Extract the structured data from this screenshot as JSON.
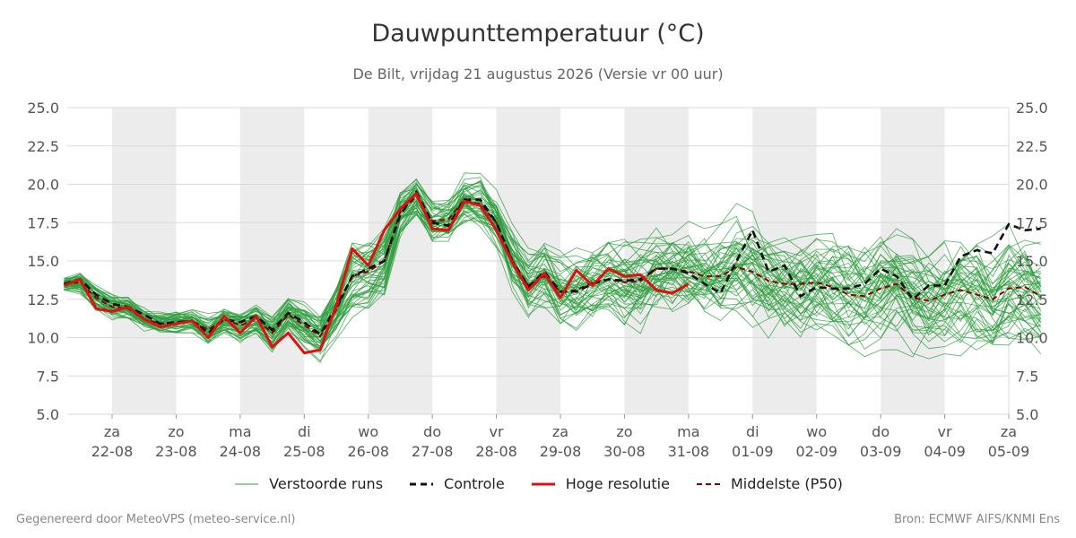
{
  "header": {
    "title": "Dauwpunttemperatuur (°C)",
    "subtitle": "De Bilt, vrijdag 21 augustus 2026 (Versie vr 00 uur)"
  },
  "footer": {
    "left": "Gegenereerd door MeteoVPS (meteo-service.nl)",
    "right": "Bron: ECMWF AIFS/KNMI Ens"
  },
  "legend": {
    "ens_label": "Verstoorde runs",
    "control_label": "Controle",
    "hires_label": "Hoge resolutie",
    "median_label": "Middelste (P50)"
  },
  "colors": {
    "ensemble": "#2e9e3e",
    "control": "#111111",
    "hires": "#dd1111",
    "median": "#8b0000",
    "weekend_band": "#ececec",
    "grid": "#d9d9d9"
  },
  "chart_data": {
    "type": "line",
    "ylim": [
      5,
      25
    ],
    "yticks": [
      "5.0",
      "7.5",
      "10.0",
      "12.5",
      "15.0",
      "17.5",
      "20.0",
      "22.5",
      "25.0"
    ],
    "xlim": [
      -0.7,
      14.0
    ],
    "xticks": [
      {
        "x": 0,
        "day": "za",
        "date": "22-08"
      },
      {
        "x": 1,
        "day": "zo",
        "date": "23-08"
      },
      {
        "x": 2,
        "day": "ma",
        "date": "24-08"
      },
      {
        "x": 3,
        "day": "di",
        "date": "25-08"
      },
      {
        "x": 4,
        "day": "wo",
        "date": "26-08"
      },
      {
        "x": 5,
        "day": "do",
        "date": "27-08"
      },
      {
        "x": 6,
        "day": "vr",
        "date": "28-08"
      },
      {
        "x": 7,
        "day": "za",
        "date": "29-08"
      },
      {
        "x": 8,
        "day": "zo",
        "date": "30-08"
      },
      {
        "x": 9,
        "day": "ma",
        "date": "31-08"
      },
      {
        "x": 10,
        "day": "di",
        "date": "01-09"
      },
      {
        "x": 11,
        "day": "wo",
        "date": "02-09"
      },
      {
        "x": 12,
        "day": "do",
        "date": "03-09"
      },
      {
        "x": 13,
        "day": "vr",
        "date": "04-09"
      },
      {
        "x": 14,
        "day": "za",
        "date": "05-09"
      }
    ],
    "shaded_bands": [
      [
        0,
        1
      ],
      [
        2,
        3
      ],
      [
        4,
        5
      ],
      [
        6,
        7
      ],
      [
        8,
        9
      ],
      [
        10,
        11
      ],
      [
        12,
        13
      ]
    ],
    "x_step": 0.25,
    "x_start": -0.75,
    "control": [
      13.5,
      13.8,
      12.8,
      12.2,
      12.0,
      11.5,
      10.9,
      11.0,
      11.1,
      10.3,
      11.2,
      11.0,
      11.4,
      10.5,
      11.6,
      11.0,
      10.2,
      12.0,
      14.0,
      14.5,
      15.0,
      18.0,
      19.5,
      17.5,
      17.3,
      19.0,
      19.0,
      17.5,
      15.0,
      13.3,
      14.3,
      13.0,
      13.0,
      13.5,
      13.8,
      13.7,
      13.8,
      14.5,
      14.5,
      14.2,
      13.5,
      12.9,
      15.0,
      17.0,
      14.3,
      14.7,
      12.7,
      13.3,
      13.2,
      13.2,
      13.5,
      14.5,
      14.0,
      12.5,
      13.4,
      13.4,
      15.3,
      15.7,
      15.5,
      17.4,
      17.0,
      17.1
    ],
    "hires": [
      13.4,
      13.8,
      11.9,
      11.7,
      12.0,
      11.2,
      10.7,
      10.9,
      11.1,
      10.0,
      11.4,
      10.3,
      11.4,
      9.4,
      10.3,
      9.0,
      9.2,
      12.1,
      15.8,
      14.7,
      17.0,
      18.4,
      19.4,
      17.1,
      17.0,
      18.9,
      18.6,
      17.0,
      14.9,
      13.1,
      14.2,
      12.6,
      14.4,
      13.4,
      14.5,
      14.0,
      14.1,
      13.1,
      12.9,
      13.5
    ],
    "median": [
      13.5,
      13.6,
      12.6,
      12.0,
      11.9,
      11.2,
      10.9,
      11.0,
      11.1,
      10.5,
      11.2,
      10.8,
      11.2,
      10.3,
      11.5,
      10.8,
      10.1,
      11.8,
      14.0,
      14.3,
      15.0,
      18.2,
      19.2,
      17.6,
      17.7,
      19.0,
      18.7,
      17.5,
      15.0,
      13.4,
      14.0,
      13.0,
      13.1,
      13.6,
      13.8,
      13.6,
      13.7,
      14.5,
      14.5,
      14.3,
      14.0,
      14.0,
      14.6,
      14.3,
      13.7,
      13.5,
      13.5,
      13.6,
      13.3,
      12.8,
      12.7,
      13.2,
      13.5,
      12.6,
      12.4,
      12.8,
      13.1,
      12.8,
      12.5,
      13.2,
      13.3,
      12.7
    ],
    "ensemble_members": 50,
    "ensemble_spread": [
      0.3,
      0.5,
      0.6,
      0.6,
      0.5,
      0.5,
      0.5,
      0.5,
      0.5,
      0.6,
      0.6,
      0.7,
      0.7,
      0.8,
      0.8,
      0.9,
      0.9,
      1.0,
      1.4,
      1.5,
      1.6,
      1.0,
      0.9,
      0.9,
      0.9,
      1.0,
      1.2,
      1.3,
      1.5,
      1.5,
      1.5,
      1.6,
      1.7,
      1.8,
      1.8,
      1.9,
      1.9,
      2.0,
      2.0,
      2.0,
      2.0,
      2.1,
      2.1,
      2.1,
      2.1,
      2.1,
      2.1,
      2.1,
      2.2,
      2.2,
      2.2,
      2.2,
      2.2,
      2.2,
      2.2,
      2.2,
      2.3,
      2.3,
      2.3,
      2.3,
      2.3,
      2.3
    ]
  }
}
